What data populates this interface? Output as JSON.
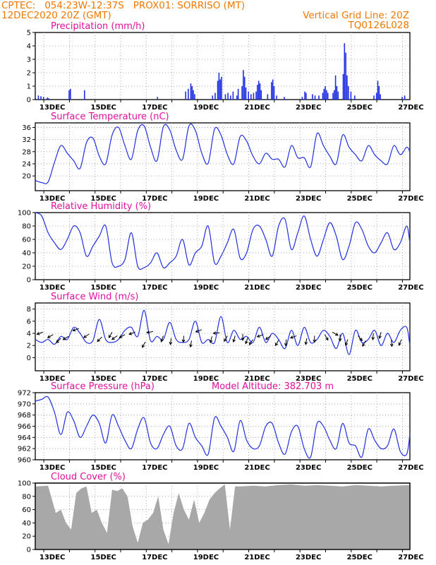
{
  "header": {
    "line1": "CPTEC:   054:23W-12:37S   PROX01: SORRISO (MT)",
    "line2": "12DEC2020 20Z (GMT)",
    "right1": "Vertical Grid Line: 20Z",
    "right2": "TQ0126L028"
  },
  "x_labels": [
    "13DEC",
    "15DEC",
    "17DEC",
    "19DEC",
    "21DEC",
    "23DEC",
    "25DEC",
    "27DEC"
  ],
  "colors": {
    "series": "#2030e0",
    "cloud": "#a8a8a8",
    "title": "#e0109a",
    "header": "#f07800"
  },
  "chart_data": [
    {
      "type": "bar",
      "title": "Precipitation (mm/h)",
      "ylim": [
        0,
        5
      ],
      "yticks": [
        "0",
        "1",
        "2",
        "3",
        "4",
        "5"
      ],
      "x_range_days": [
        0,
        14.625
      ],
      "x_units": "days since 12DEC2020 12Z",
      "bars": [
        [
          0.1,
          0.3
        ],
        [
          0.2,
          0.25
        ],
        [
          0.3,
          0.2
        ],
        [
          0.45,
          0.15
        ],
        [
          0.5,
          0.1
        ],
        [
          1.3,
          0.7
        ],
        [
          1.35,
          0.8
        ],
        [
          1.9,
          0.7
        ],
        [
          4.75,
          0.2
        ],
        [
          5.85,
          0.6
        ],
        [
          5.95,
          0.8
        ],
        [
          6.05,
          1.2
        ],
        [
          6.1,
          1.0
        ],
        [
          6.15,
          0.7
        ],
        [
          6.2,
          0.4
        ],
        [
          6.9,
          0.3
        ],
        [
          7.0,
          0.5
        ],
        [
          7.1,
          1.4
        ],
        [
          7.15,
          2.0
        ],
        [
          7.2,
          1.5
        ],
        [
          7.25,
          1.7
        ],
        [
          7.4,
          0.4
        ],
        [
          7.5,
          0.5
        ],
        [
          7.6,
          0.3
        ],
        [
          7.7,
          0.6
        ],
        [
          7.85,
          0.3
        ],
        [
          7.9,
          0.8
        ],
        [
          8.05,
          1.0
        ],
        [
          8.1,
          2.2
        ],
        [
          8.15,
          1.7
        ],
        [
          8.2,
          0.9
        ],
        [
          8.3,
          0.6
        ],
        [
          8.4,
          0.4
        ],
        [
          8.5,
          0.5
        ],
        [
          8.6,
          0.6
        ],
        [
          8.65,
          1.1
        ],
        [
          8.7,
          1.4
        ],
        [
          8.75,
          1.2
        ],
        [
          8.8,
          0.7
        ],
        [
          9.05,
          0.4
        ],
        [
          9.2,
          1.3
        ],
        [
          9.25,
          1.5
        ],
        [
          9.3,
          1.0
        ],
        [
          9.4,
          0.3
        ],
        [
          9.7,
          0.2
        ],
        [
          10.4,
          0.2
        ],
        [
          10.5,
          0.6
        ],
        [
          10.55,
          0.5
        ],
        [
          10.8,
          0.4
        ],
        [
          10.9,
          0.3
        ],
        [
          11.05,
          0.3
        ],
        [
          11.2,
          0.5
        ],
        [
          11.25,
          0.8
        ],
        [
          11.3,
          1.0
        ],
        [
          11.35,
          0.7
        ],
        [
          11.4,
          0.5
        ],
        [
          11.6,
          0.5
        ],
        [
          11.65,
          0.7
        ],
        [
          11.7,
          1.8
        ],
        [
          11.75,
          1.0
        ],
        [
          11.8,
          0.6
        ],
        [
          12.0,
          1.9
        ],
        [
          12.05,
          4.2
        ],
        [
          12.1,
          3.5
        ],
        [
          12.15,
          1.8
        ],
        [
          12.2,
          1.0
        ],
        [
          12.3,
          0.6
        ],
        [
          12.45,
          0.3
        ],
        [
          13.2,
          0.3
        ],
        [
          13.3,
          0.5
        ],
        [
          13.35,
          1.4
        ],
        [
          13.4,
          1.0
        ],
        [
          13.45,
          0.4
        ],
        [
          14.3,
          0.2
        ],
        [
          14.4,
          0.3
        ]
      ]
    },
    {
      "type": "line",
      "title": "Surface Temperature (nC)",
      "ylim": [
        17,
        37.5
      ],
      "yticks": [
        "20",
        "24",
        "28",
        "32",
        "36"
      ],
      "x": [
        0,
        0.25,
        0.5,
        0.75,
        1,
        1.25,
        1.5,
        1.75,
        2,
        2.25,
        2.5,
        2.75,
        3,
        3.25,
        3.5,
        3.75,
        4,
        4.25,
        4.5,
        4.75,
        5,
        5.25,
        5.5,
        5.75,
        6,
        6.25,
        6.5,
        6.75,
        7,
        7.25,
        7.5,
        7.75,
        8,
        8.25,
        8.5,
        8.75,
        9,
        9.25,
        9.5,
        9.75,
        10,
        10.25,
        10.5,
        10.75,
        11,
        11.25,
        11.5,
        11.75,
        12,
        12.25,
        12.5,
        12.75,
        13,
        13.25,
        13.5,
        13.75,
        14,
        14.25,
        14.5,
        14.625
      ],
      "values": [
        18.5,
        17.8,
        18.0,
        24.5,
        30.0,
        27.5,
        25.0,
        22.5,
        31.0,
        32.5,
        26.5,
        24.0,
        33.5,
        36.0,
        30.0,
        25.5,
        35.0,
        36.5,
        29.5,
        25.0,
        36.2,
        35.2,
        28.5,
        25.5,
        36.5,
        35.0,
        27.5,
        24.2,
        35.5,
        33.5,
        27.0,
        24.0,
        33.0,
        31.5,
        26.5,
        24.0,
        27.5,
        25.5,
        25.5,
        23.0,
        30.0,
        26.0,
        26.0,
        23.0,
        34.0,
        30.0,
        26.5,
        24.0,
        33.5,
        29.5,
        27.0,
        25.0,
        30.0,
        27.0,
        25.0,
        24.0,
        30.0,
        27.0,
        29.5,
        28.0
      ]
    },
    {
      "type": "line",
      "title": "Relative Humidity (%)",
      "ylim": [
        0,
        100
      ],
      "yticks": [
        "0",
        "20",
        "40",
        "60",
        "80",
        "100"
      ],
      "x": [
        0,
        0.25,
        0.5,
        0.75,
        1,
        1.25,
        1.5,
        1.75,
        2,
        2.25,
        2.5,
        2.75,
        3,
        3.25,
        3.5,
        3.75,
        4,
        4.25,
        4.5,
        4.75,
        5,
        5.25,
        5.5,
        5.75,
        6,
        6.25,
        6.5,
        6.75,
        7,
        7.25,
        7.5,
        7.75,
        8,
        8.25,
        8.5,
        8.75,
        9,
        9.25,
        9.5,
        9.75,
        10,
        10.25,
        10.5,
        10.75,
        11,
        11.25,
        11.5,
        11.75,
        12,
        12.25,
        12.5,
        12.75,
        13,
        13.25,
        13.5,
        13.75,
        14,
        14.25,
        14.5,
        14.625
      ],
      "values": [
        100,
        95,
        70,
        55,
        45,
        60,
        80,
        70,
        35,
        50,
        65,
        80,
        25,
        20,
        30,
        70,
        20,
        18,
        25,
        40,
        18,
        25,
        35,
        60,
        22,
        40,
        50,
        80,
        25,
        35,
        55,
        75,
        32,
        40,
        75,
        80,
        60,
        35,
        80,
        90,
        45,
        70,
        95,
        60,
        35,
        60,
        85,
        65,
        30,
        50,
        85,
        75,
        50,
        40,
        55,
        70,
        45,
        55,
        80,
        55
      ]
    },
    {
      "type": "line",
      "title": "Surface Wind (m/s)",
      "ylim": [
        -1,
        9
      ],
      "yticks": [
        "0",
        "2",
        "4",
        "6",
        "8"
      ],
      "x": [
        0,
        0.25,
        0.5,
        0.75,
        1,
        1.25,
        1.5,
        1.75,
        2,
        2.25,
        2.5,
        2.75,
        3,
        3.25,
        3.5,
        3.75,
        4,
        4.25,
        4.5,
        4.75,
        5,
        5.25,
        5.5,
        5.75,
        6,
        6.25,
        6.5,
        6.75,
        7,
        7.25,
        7.5,
        7.75,
        8,
        8.25,
        8.5,
        8.75,
        9,
        9.25,
        9.5,
        9.75,
        10,
        10.25,
        10.5,
        10.75,
        11,
        11.25,
        11.5,
        11.75,
        12,
        12.25,
        12.5,
        12.75,
        13,
        13.25,
        13.5,
        13.75,
        14,
        14.25,
        14.5,
        14.625
      ],
      "values": [
        3.0,
        2.5,
        3.0,
        2.2,
        3.5,
        3.0,
        5.0,
        4.0,
        2.5,
        2.8,
        6.3,
        3.0,
        2.5,
        3.0,
        4.5,
        5.0,
        3.5,
        7.8,
        2.8,
        3.5,
        3.0,
        5.8,
        3.0,
        2.5,
        3.0,
        6.0,
        2.5,
        3.0,
        2.5,
        6.8,
        2.5,
        4.5,
        3.0,
        3.5,
        2.5,
        5.0,
        2.5,
        4.0,
        3.0,
        1.5,
        4.5,
        2.0,
        5.0,
        2.5,
        3.0,
        4.5,
        3.5,
        1.5,
        4.0,
        0.5,
        4.5,
        2.5,
        3.0,
        4.5,
        2.0,
        4.0,
        2.5,
        4.5,
        5.0,
        2.0
      ],
      "arrows": [
        [
          0.3,
          4.2,
          200
        ],
        [
          0.7,
          3.8,
          210
        ],
        [
          1.0,
          3.2,
          225
        ],
        [
          1.3,
          3.5,
          210
        ],
        [
          1.7,
          4.8,
          200
        ],
        [
          2.1,
          3.9,
          215
        ],
        [
          2.6,
          3.4,
          225
        ],
        [
          3.0,
          4.2,
          240
        ],
        [
          3.2,
          3.6,
          215
        ],
        [
          3.5,
          3.8,
          210
        ],
        [
          3.9,
          4.2,
          200
        ],
        [
          4.3,
          2.6,
          240
        ],
        [
          4.6,
          4.3,
          190
        ],
        [
          5.0,
          3.6,
          250
        ],
        [
          5.3,
          3.2,
          265
        ],
        [
          5.8,
          3.6,
          265
        ],
        [
          6.1,
          2.8,
          260
        ],
        [
          6.5,
          4.6,
          200
        ],
        [
          6.9,
          3.5,
          255
        ],
        [
          7.2,
          4.1,
          185
        ],
        [
          7.5,
          3.6,
          240
        ],
        [
          7.8,
          3.6,
          255
        ],
        [
          8.1,
          3.9,
          270
        ],
        [
          8.3,
          3.3,
          250
        ],
        [
          8.5,
          3.0,
          235
        ],
        [
          8.9,
          3.8,
          200
        ],
        [
          9.2,
          3.6,
          215
        ],
        [
          9.5,
          2.9,
          240
        ],
        [
          9.8,
          3.0,
          265
        ],
        [
          10.2,
          3.6,
          200
        ],
        [
          10.6,
          3.2,
          260
        ],
        [
          10.9,
          3.6,
          270
        ],
        [
          11.3,
          3.8,
          300
        ],
        [
          11.6,
          4.2,
          330
        ],
        [
          11.9,
          3.8,
          270
        ],
        [
          12.2,
          3.0,
          250
        ],
        [
          12.6,
          3.6,
          310
        ],
        [
          12.9,
          2.8,
          240
        ],
        [
          13.2,
          4.0,
          265
        ],
        [
          13.5,
          4.2,
          255
        ],
        [
          13.9,
          2.9,
          275
        ],
        [
          14.3,
          3.0,
          245
        ]
      ]
    },
    {
      "type": "line",
      "title": "Surface Pressure (hPa)",
      "annotation": "Model Altitude: 382.703 m",
      "ylim": [
        960,
        972
      ],
      "yticks": [
        "960",
        "962",
        "964",
        "966",
        "968",
        "970",
        "972"
      ],
      "x": [
        0,
        0.25,
        0.5,
        0.75,
        1,
        1.25,
        1.5,
        1.75,
        2,
        2.25,
        2.5,
        2.75,
        3,
        3.25,
        3.5,
        3.75,
        4,
        4.25,
        4.5,
        4.75,
        5,
        5.25,
        5.5,
        5.75,
        6,
        6.25,
        6.5,
        6.75,
        7,
        7.25,
        7.5,
        7.75,
        8,
        8.25,
        8.5,
        8.75,
        9,
        9.25,
        9.5,
        9.75,
        10,
        10.25,
        10.5,
        10.75,
        11,
        11.25,
        11.5,
        11.75,
        12,
        12.25,
        12.5,
        12.75,
        13,
        13.25,
        13.5,
        13.75,
        14,
        14.25,
        14.5,
        14.625
      ],
      "values": [
        970.5,
        970.8,
        971.2,
        968.5,
        964.5,
        968.5,
        967.0,
        964.0,
        966.0,
        968.0,
        966.5,
        963.0,
        968.0,
        966.0,
        963.5,
        962.0,
        965.5,
        967.5,
        963.0,
        962.0,
        964.5,
        966.0,
        962.5,
        962.0,
        966.5,
        964.0,
        962.5,
        961.0,
        967.5,
        966.0,
        964.0,
        961.5,
        967.0,
        963.5,
        962.0,
        962.5,
        966.0,
        966.5,
        963.0,
        961.0,
        965.0,
        966.0,
        962.0,
        960.5,
        966.5,
        966.0,
        963.5,
        962.0,
        966.5,
        963.0,
        962.5,
        960.5,
        965.5,
        963.5,
        962.0,
        962.5,
        965.5,
        961.5,
        961.0,
        964.5
      ]
    },
    {
      "type": "area",
      "title": "Cloud Cover (%)",
      "ylim": [
        0,
        100
      ],
      "yticks": [
        "0",
        "20",
        "40",
        "60",
        "80",
        "100"
      ],
      "x": [
        0,
        0.5,
        0.8,
        1.0,
        1.2,
        1.4,
        1.6,
        1.8,
        2.0,
        2.2,
        2.4,
        2.6,
        2.8,
        3.0,
        3.2,
        3.4,
        3.6,
        3.8,
        4.0,
        4.2,
        4.4,
        4.6,
        4.8,
        5.0,
        5.2,
        5.4,
        5.6,
        5.8,
        6.0,
        6.2,
        6.4,
        6.6,
        6.8,
        7.0,
        7.2,
        7.4,
        7.6,
        7.8,
        8.0,
        8.5,
        9.0,
        9.5,
        10.0,
        10.5,
        11.0,
        11.5,
        12.0,
        12.5,
        13.0,
        13.5,
        14.0,
        14.625
      ],
      "values": [
        95,
        96,
        55,
        60,
        40,
        30,
        85,
        92,
        95,
        55,
        60,
        40,
        25,
        90,
        88,
        92,
        80,
        35,
        10,
        40,
        45,
        55,
        80,
        30,
        8,
        55,
        85,
        60,
        45,
        75,
        40,
        55,
        75,
        85,
        92,
        98,
        30,
        95,
        95,
        96,
        95,
        97,
        98,
        96,
        97,
        96,
        95,
        97,
        96,
        95,
        96,
        97
      ]
    }
  ]
}
